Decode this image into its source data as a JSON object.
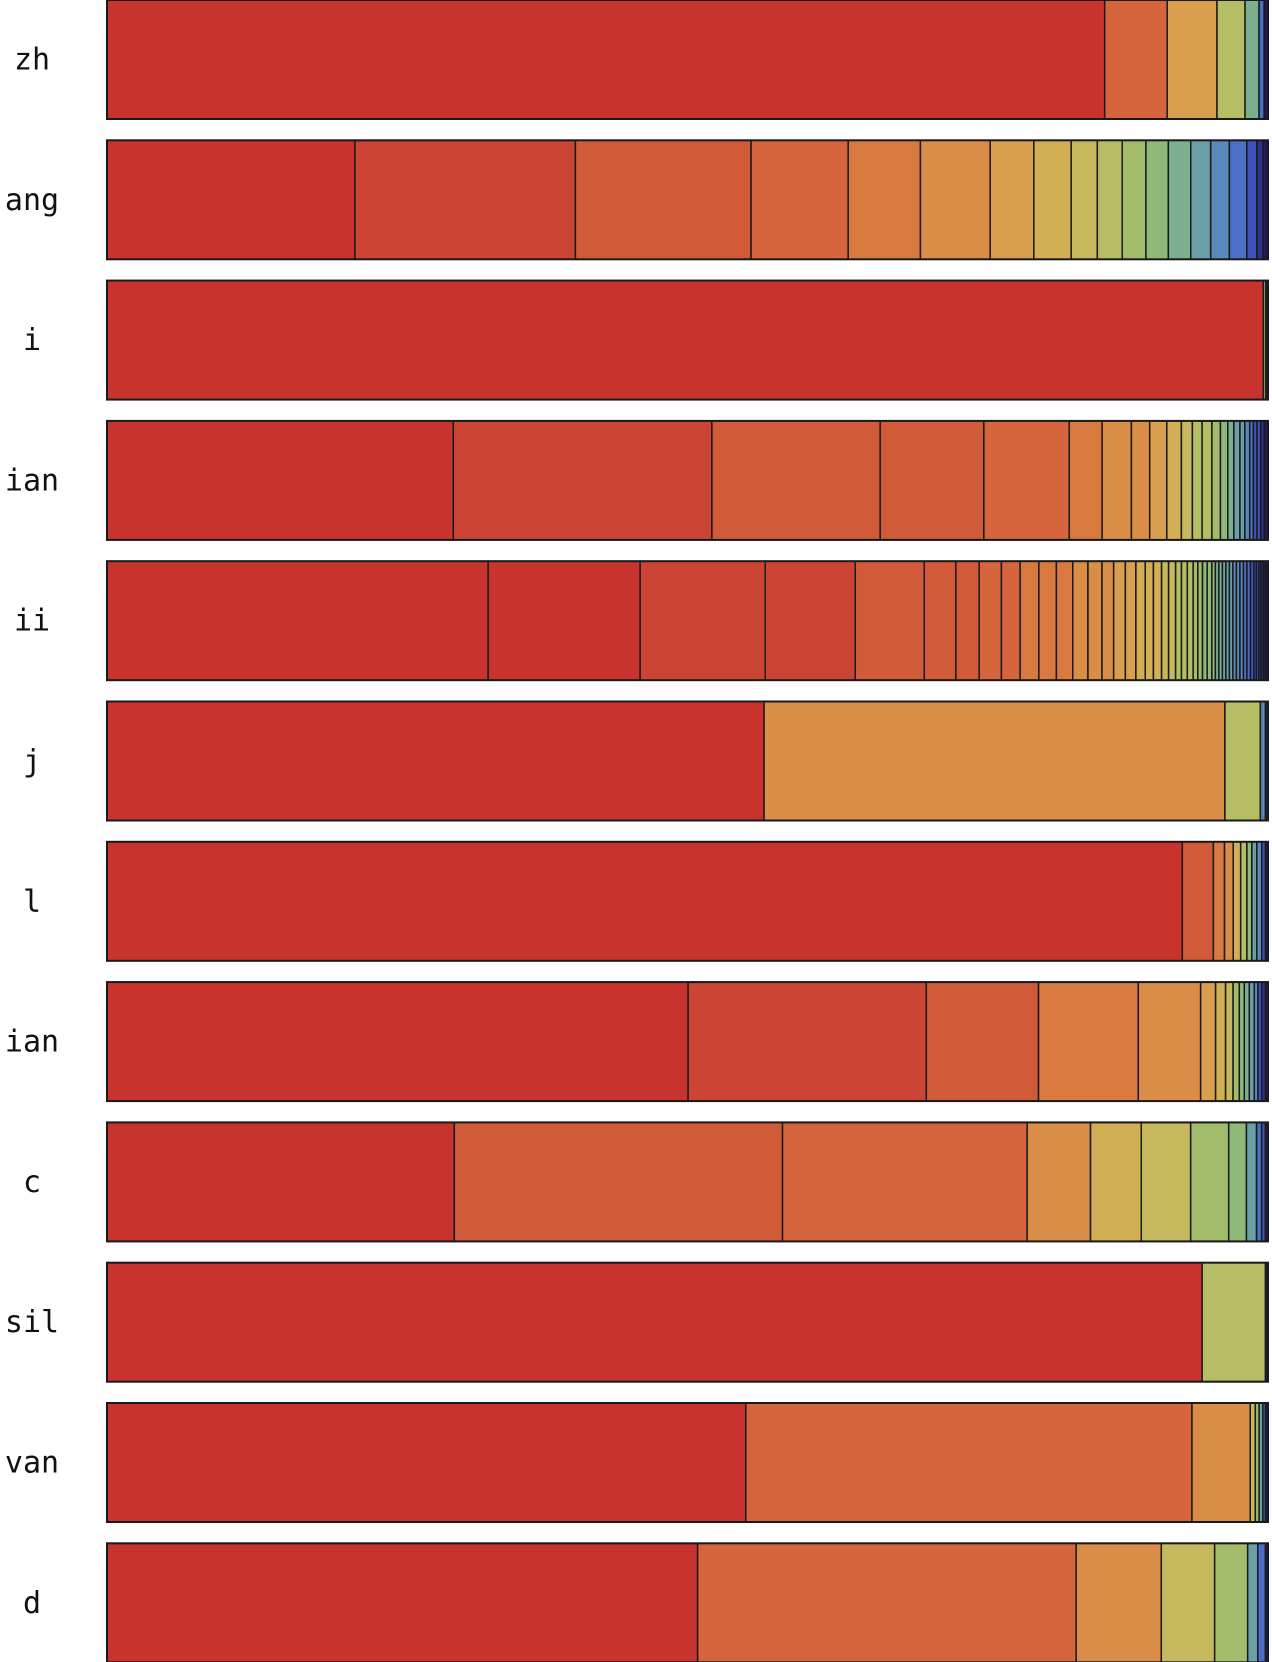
{
  "chart_data": {
    "type": "bar",
    "orientation": "horizontal",
    "stacked": true,
    "normalized": true,
    "grid": false,
    "legend": "none",
    "xlim": [
      0,
      100
    ],
    "palette": [
      "#c8332e",
      "#cc4534",
      "#d15a39",
      "#d6653d",
      "#d8793f",
      "#d98d47",
      "#d8a04e",
      "#d2ae55",
      "#c6b85c",
      "#b6be63",
      "#a2bc6b",
      "#8eb978",
      "#7cae90",
      "#6a9fa8",
      "#5a89bd",
      "#4b6fc7",
      "#3f53b6",
      "#312f90",
      "#221b5a"
    ],
    "rows": [
      {
        "label": "zh",
        "values": [
          78.2,
          4.9,
          3.9,
          2.2,
          1.1,
          0.4,
          0.3
        ]
      },
      {
        "label": "ang",
        "values": [
          19.9,
          17.7,
          14.1,
          7.8,
          5.8,
          5.6,
          3.5,
          3.0,
          2.1,
          2.0,
          1.9,
          1.8,
          1.8,
          1.6,
          1.5,
          1.4,
          0.8,
          0.5,
          0.4
        ]
      },
      {
        "label": "i",
        "values": [
          99.6,
          0.2,
          0.2
        ]
      },
      {
        "label": "ian",
        "values": [
          28.4,
          21.2,
          13.8,
          8.5,
          7.0,
          2.7,
          2.4,
          1.5,
          1.4,
          1.2,
          0.9,
          0.8,
          0.8,
          0.7,
          0.6,
          0.5,
          0.5,
          0.4,
          0.4,
          0.3,
          0.3,
          0.3,
          0.3,
          0.3
        ]
      },
      {
        "label": "ii",
        "values": [
          32.6,
          13.0,
          10.7,
          7.7,
          5.9,
          2.7,
          2.0,
          1.9,
          1.6,
          1.6,
          1.5,
          1.4,
          1.3,
          1.2,
          1.0,
          1.0,
          0.9,
          0.8,
          0.7,
          0.7,
          0.6,
          0.6,
          0.5,
          0.5,
          0.5,
          0.4,
          0.4,
          0.4,
          0.4,
          0.3,
          0.3,
          0.3,
          0.3,
          0.3,
          0.3,
          0.3,
          0.3,
          0.3,
          0.3,
          0.3,
          0.3,
          0.2,
          0.2,
          0.2,
          0.2,
          0.2,
          0.2
        ]
      },
      {
        "label": "j",
        "values": [
          51.9,
          36.4,
          2.8,
          0.4,
          0.2
        ]
      },
      {
        "label": "l",
        "values": [
          86.6,
          2.5,
          0.9,
          0.7,
          0.6,
          0.5,
          0.4,
          0.4,
          0.4,
          0.3,
          0.2
        ]
      },
      {
        "label": "ian",
        "values": [
          46.6,
          19.1,
          9.0,
          8.0,
          5.0,
          1.2,
          0.8,
          0.6,
          0.5,
          0.4,
          0.4,
          0.4,
          0.3,
          0.3,
          0.3,
          0.2
        ]
      },
      {
        "label": "c",
        "values": [
          27.4,
          25.9,
          19.3,
          5.0,
          4.0,
          3.9,
          3.0,
          1.4,
          0.8,
          0.4,
          0.3,
          0.2
        ]
      },
      {
        "label": "sil",
        "values": [
          86.5,
          5.0,
          0.2
        ]
      },
      {
        "label": "van",
        "values": [
          50.4,
          35.2,
          4.6,
          0.4,
          0.3,
          0.3,
          0.2,
          0.2
        ]
      },
      {
        "label": "d",
        "values": [
          46.5,
          29.8,
          6.7,
          4.2,
          2.6,
          0.8,
          0.6,
          0.2
        ]
      }
    ]
  }
}
